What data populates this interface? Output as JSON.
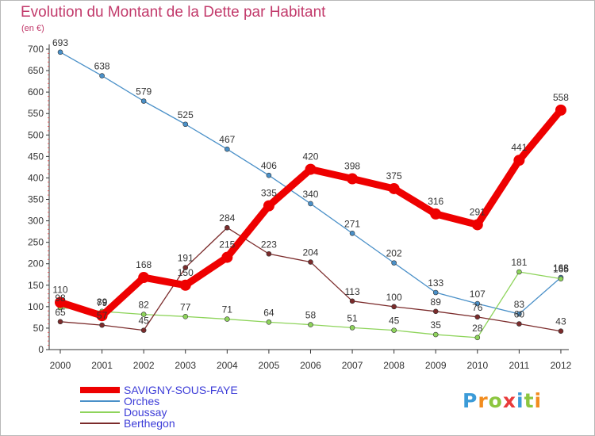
{
  "title": "Evolution du Montant de la Dette par Habitant",
  "unit": "(en €)",
  "logo": {
    "letters": [
      "P",
      "r",
      "o",
      "x",
      "i",
      "t",
      "i"
    ],
    "colors": [
      "#3b9bd8",
      "#f28c1e",
      "#8cc63f",
      "#e83a3a",
      "#3b9bd8",
      "#8cc63f",
      "#f28c1e"
    ]
  },
  "chart_data": {
    "type": "line",
    "x": [
      "2000",
      "2001",
      "2002",
      "2003",
      "2004",
      "2005",
      "2006",
      "2007",
      "2008",
      "2009",
      "2010",
      "2011",
      "2012"
    ],
    "ylim": [
      0,
      700
    ],
    "yticks": [
      0,
      50,
      100,
      150,
      200,
      250,
      300,
      350,
      400,
      450,
      500,
      550,
      600,
      650,
      700
    ],
    "grid": false,
    "legend_position": "bottom-left",
    "series": [
      {
        "name": "SAVIGNY-SOUS-FAYE",
        "color": "#ee0000",
        "values": [
          110,
          79,
          168,
          150,
          215,
          335,
          420,
          398,
          375,
          316,
          291,
          441,
          558
        ]
      },
      {
        "name": "Orches",
        "color": "#4a90c8",
        "values": [
          693,
          638,
          579,
          525,
          467,
          406,
          340,
          271,
          202,
          133,
          107,
          83,
          168
        ]
      },
      {
        "name": "Doussay",
        "color": "#8ed45b",
        "values": [
          98,
          89,
          82,
          77,
          71,
          64,
          58,
          51,
          45,
          35,
          28,
          181,
          165
        ]
      },
      {
        "name": "Berthegon",
        "color": "#7b2b2b",
        "values": [
          65,
          57,
          45,
          191,
          284,
          223,
          204,
          113,
          100,
          89,
          76,
          60,
          43
        ]
      }
    ]
  }
}
